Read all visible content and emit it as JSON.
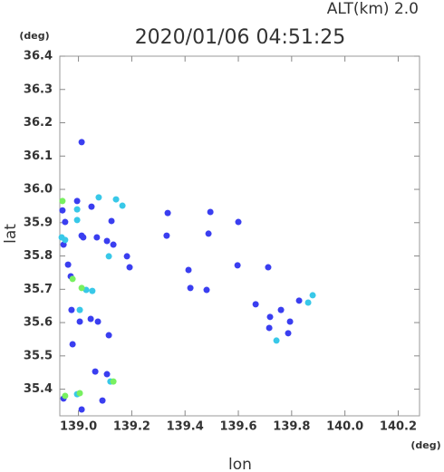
{
  "chart_data": {
    "type": "scatter",
    "title": "2020/01/06 04:51:25",
    "subtitle": "ALT(km) 2.0",
    "x_label": "lon",
    "y_label": "lat",
    "x_unit": "(deg)",
    "y_unit": "(deg)",
    "xlim": [
      138.93,
      140.28
    ],
    "ylim": [
      35.32,
      36.4
    ],
    "xticks": [
      {
        "value": 139,
        "label": "139.0"
      },
      139.2,
      139.4,
      139.6,
      139.8,
      {
        "value": 140,
        "label": "140.0"
      },
      140.2
    ],
    "yticks": [
      35.4,
      35.5,
      35.6,
      35.7,
      35.8,
      35.9,
      {
        "value": 36,
        "label": "36.0"
      },
      36.1,
      36.2,
      36.3,
      36.4
    ],
    "grid": false,
    "series": [
      {
        "color": "#3a3ef0",
        "x": [
          138.94,
          138.95,
          138.995,
          139.012,
          139.018,
          138.944,
          138.961,
          138.971,
          138.974,
          139.005,
          139.046,
          139.073,
          139.114,
          139.063,
          139.107,
          139.09,
          139.012,
          138.944,
          139.495,
          139.6,
          139.488,
          139.331,
          139.597,
          139.712,
          139.665,
          139.76,
          139.719,
          139.794,
          139.828,
          139.716,
          139.787,
          139.182,
          139.192,
          139.124,
          139.131,
          139.107,
          139.069,
          139.335,
          139.413,
          139.481,
          139.42,
          139.049,
          139.012,
          138.978
        ],
        "y": [
          35.937,
          35.902,
          35.965,
          35.861,
          35.856,
          35.834,
          35.774,
          35.739,
          35.638,
          35.603,
          35.611,
          35.603,
          35.562,
          35.453,
          35.445,
          35.366,
          35.339,
          35.372,
          35.932,
          35.902,
          35.867,
          35.861,
          35.772,
          35.766,
          35.655,
          35.638,
          35.617,
          35.603,
          35.666,
          35.584,
          35.568,
          35.799,
          35.766,
          35.905,
          35.834,
          35.845,
          35.856,
          35.929,
          35.758,
          35.698,
          35.704,
          35.948,
          36.142,
          35.535
        ]
      },
      {
        "color": "#38c8e8",
        "x": [
          138.937,
          138.995,
          138.995,
          138.95,
          139.029,
          139.052,
          139.005,
          139.076,
          139.141,
          139.114,
          139.743,
          139.879,
          139.862,
          139.12,
          138.995,
          139.165
        ],
        "y": [
          35.856,
          35.908,
          35.94,
          35.848,
          35.698,
          35.695,
          35.638,
          35.976,
          35.97,
          35.799,
          35.546,
          35.682,
          35.66,
          35.423,
          35.385,
          35.951
        ]
      },
      {
        "color": "#78f060",
        "x": [
          138.94,
          138.978,
          139.012,
          138.95,
          139.005,
          139.131
        ],
        "y": [
          35.965,
          35.731,
          35.704,
          35.38,
          35.388,
          35.423
        ]
      }
    ]
  }
}
